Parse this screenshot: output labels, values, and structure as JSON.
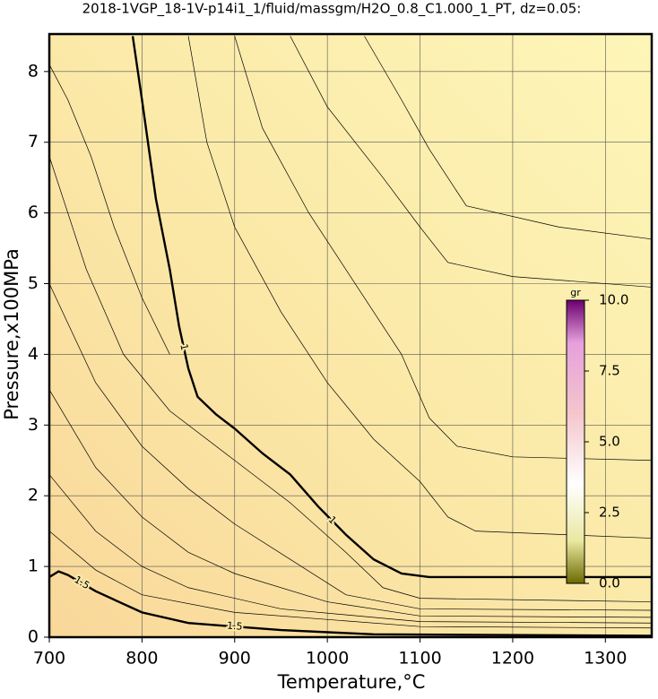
{
  "chart_data": {
    "type": "contour",
    "title": "2018-1VGP_18-1V-p14i1_1/fluid/massgm/H2O_0.8_C1.000_1_PT, dz=0.05:",
    "x_label": "Temperature,°C",
    "y_label": "Pressure,x100MPa",
    "xlim": [
      700,
      1350
    ],
    "ylim": [
      0,
      8.53
    ],
    "xticks": [
      700,
      800,
      900,
      1000,
      1100,
      1200,
      1300
    ],
    "yticks": [
      0,
      1,
      2,
      3,
      4,
      5,
      6,
      7,
      8
    ],
    "grid": true,
    "series": [
      {
        "level": 1,
        "x": [
          790,
          800,
          815,
          830,
          840,
          850,
          860,
          880,
          900,
          930,
          960,
          990,
          1020,
          1050,
          1080,
          1110,
          1350
        ],
        "y": [
          8.5,
          7.6,
          6.2,
          5.2,
          4.4,
          3.8,
          3.4,
          3.15,
          2.95,
          2.6,
          2.3,
          1.85,
          1.45,
          1.1,
          0.9,
          0.85,
          0.85
        ]
      },
      {
        "level": 1.5,
        "x": [
          700,
          710,
          720,
          750,
          800,
          850,
          950,
          1050,
          1350
        ],
        "y": [
          0.85,
          0.93,
          0.88,
          0.65,
          0.35,
          0.2,
          0.1,
          0.04,
          0.02
        ]
      },
      {
        "level": 0.95,
        "x": [
          850,
          870,
          900,
          950,
          1000,
          1050,
          1100,
          1130,
          1160,
          1350
        ],
        "y": [
          8.5,
          7.0,
          5.8,
          4.6,
          3.6,
          2.8,
          2.2,
          1.7,
          1.5,
          1.4
        ]
      },
      {
        "level": 0.9,
        "x": [
          900,
          930,
          980,
          1030,
          1080,
          1110,
          1140,
          1200,
          1350
        ],
        "y": [
          8.5,
          7.2,
          6.0,
          5.0,
          4.0,
          3.1,
          2.7,
          2.55,
          2.5
        ]
      },
      {
        "level": 0.85,
        "x": [
          960,
          1000,
          1060,
          1100,
          1130,
          1200,
          1350
        ],
        "y": [
          8.5,
          7.5,
          6.5,
          5.8,
          5.3,
          5.1,
          4.95
        ]
      },
      {
        "level": 0.8,
        "x": [
          1040,
          1080,
          1110,
          1150,
          1250,
          1350
        ],
        "y": [
          8.5,
          7.6,
          6.9,
          6.1,
          5.8,
          5.63
        ]
      },
      {
        "level": 1.05,
        "x": [
          700,
          740,
          780,
          830,
          900,
          960,
          1020,
          1060,
          1100,
          1350
        ],
        "y": [
          6.8,
          5.2,
          4.0,
          3.2,
          2.5,
          1.9,
          1.2,
          0.7,
          0.55,
          0.5
        ]
      },
      {
        "level": 1.1,
        "x": [
          700,
          750,
          800,
          850,
          900,
          960,
          1020,
          1100,
          1350
        ],
        "y": [
          5.0,
          3.6,
          2.7,
          2.1,
          1.6,
          1.1,
          0.6,
          0.4,
          0.38
        ]
      },
      {
        "level": 1.2,
        "x": [
          700,
          750,
          800,
          850,
          900,
          1000,
          1100,
          1350
        ],
        "y": [
          3.5,
          2.4,
          1.7,
          1.2,
          0.9,
          0.5,
          0.3,
          0.28
        ]
      },
      {
        "level": 1.3,
        "x": [
          700,
          750,
          800,
          850,
          950,
          1100,
          1350
        ],
        "y": [
          2.3,
          1.5,
          1.0,
          0.7,
          0.4,
          0.22,
          0.2
        ]
      },
      {
        "level": 1.4,
        "x": [
          700,
          750,
          800,
          900,
          1100,
          1350
        ],
        "y": [
          1.5,
          0.95,
          0.6,
          0.35,
          0.15,
          0.13
        ]
      },
      {
        "level": 1.02,
        "x": [
          700,
          720,
          745,
          770,
          800,
          830
        ],
        "y": [
          8.1,
          7.6,
          6.8,
          5.8,
          4.8,
          4.0
        ]
      }
    ],
    "colorbar": {
      "label": "gr",
      "lim": [
        0,
        10
      ],
      "ticks": [
        {
          "value": 0,
          "label": "0.0"
        },
        {
          "value": 2.5,
          "label": "2.5"
        },
        {
          "value": 5,
          "label": "5.0"
        },
        {
          "value": 7.5,
          "label": "7.5"
        },
        {
          "value": 10,
          "label": "10.0"
        }
      ]
    }
  }
}
